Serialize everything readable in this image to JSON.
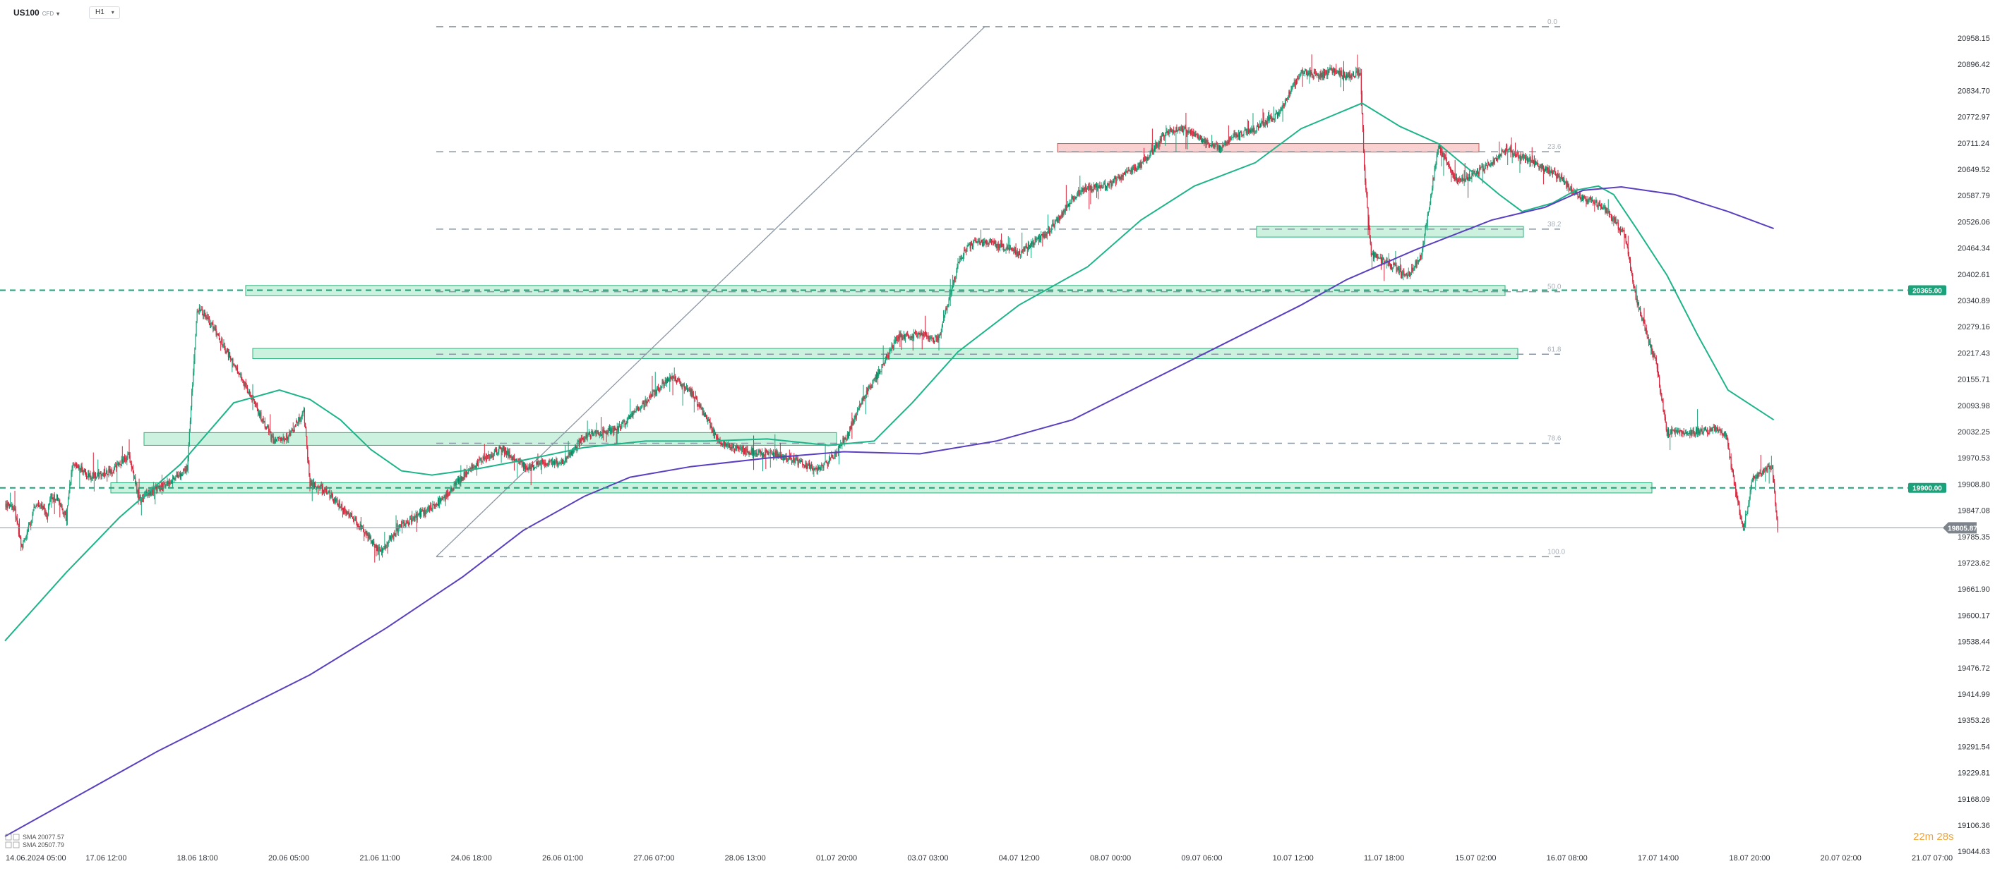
{
  "instrument": {
    "symbol": "US100",
    "type": "CFD",
    "timeframe": "H1"
  },
  "countdown": "22m 28s",
  "colors": {
    "bull": "#1aa37a",
    "bear": "#d7263d",
    "ema": "#1db48a",
    "sma": "#5a3fc0",
    "zone_green": "#8ee0b8",
    "zone_red": "#f29a9a",
    "fib": "#8a96a3"
  },
  "legend": [
    {
      "label": "SMA",
      "value": "20077.57",
      "color": "#1db48a"
    },
    {
      "label": "SMA",
      "value": "20507.79",
      "color": "#5a3fc0"
    }
  ],
  "chart_data": {
    "type": "candlestick",
    "timeframe": "H1",
    "ylim": [
      19044.63,
      21020
    ],
    "y_ticks": [
      "20958.15",
      "20896.42",
      "20834.70",
      "20772.97",
      "20711.24",
      "20649.52",
      "20587.79",
      "20526.06",
      "20464.34",
      "20402.61",
      "20340.89",
      "20279.16",
      "20217.43",
      "20155.71",
      "20093.98",
      "20032.25",
      "19970.53",
      "19908.80",
      "19847.08",
      "19785.35",
      "19723.62",
      "19661.90",
      "19600.17",
      "19538.44",
      "19476.72",
      "19414.99",
      "19353.26",
      "19291.54",
      "19229.81",
      "19168.09",
      "19106.36",
      "19044.63"
    ],
    "x_ticks": [
      "14.06.2024 05:00",
      "17.06 12:00",
      "18.06 18:00",
      "20.06 05:00",
      "21.06 11:00",
      "24.06 18:00",
      "26.06 01:00",
      "27.06 07:00",
      "28.06 13:00",
      "01.07 20:00",
      "03.07 03:00",
      "04.07 12:00",
      "08.07 00:00",
      "09.07 06:00",
      "10.07 12:00",
      "11.07 18:00",
      "15.07 02:00",
      "16.07 08:00",
      "17.07 14:00",
      "18.07 20:00",
      "20.07 02:00",
      "21.07 07:00"
    ],
    "current_price": "19805.87",
    "price_levels": [
      {
        "price": 20365,
        "label": "20365.00"
      },
      {
        "price": 19900,
        "label": "19900.00"
      }
    ],
    "fibonacci": {
      "high": 20985,
      "low": 19738,
      "levels": [
        {
          "ratio": 0.0,
          "label": "0.0"
        },
        {
          "ratio": 0.236,
          "label": "23.6"
        },
        {
          "ratio": 0.382,
          "label": "38.2"
        },
        {
          "ratio": 0.5,
          "label": "50.0"
        },
        {
          "ratio": 0.618,
          "label": "61.8"
        },
        {
          "ratio": 0.786,
          "label": "78.6"
        },
        {
          "ratio": 1.0,
          "label": "100.0"
        }
      ]
    },
    "path": [
      [
        0,
        19862
      ],
      [
        12,
        19855
      ],
      [
        22,
        19760
      ],
      [
        30,
        19800
      ],
      [
        40,
        19860
      ],
      [
        50,
        19855
      ],
      [
        55,
        19830
      ],
      [
        60,
        19880
      ],
      [
        68,
        19878
      ],
      [
        80,
        19830
      ],
      [
        88,
        19950
      ],
      [
        98,
        19950
      ],
      [
        108,
        19925
      ],
      [
        120,
        19932
      ],
      [
        140,
        19940
      ],
      [
        163,
        19975
      ],
      [
        176,
        19870
      ],
      [
        190,
        19890
      ],
      [
        209,
        19905
      ],
      [
        230,
        19930
      ],
      [
        239,
        19947
      ],
      [
        252,
        20320
      ],
      [
        262,
        20310
      ],
      [
        282,
        20250
      ],
      [
        300,
        20192
      ],
      [
        330,
        20090
      ],
      [
        352,
        20010
      ],
      [
        372,
        20020
      ],
      [
        392,
        20080
      ],
      [
        400,
        19910
      ],
      [
        420,
        19895
      ],
      [
        436,
        19865
      ],
      [
        448,
        19843
      ],
      [
        465,
        19812
      ],
      [
        492,
        19750
      ],
      [
        520,
        19810
      ],
      [
        556,
        19850
      ],
      [
        578,
        19880
      ],
      [
        612,
        19950
      ],
      [
        652,
        19992
      ],
      [
        686,
        19944
      ],
      [
        700,
        19959
      ],
      [
        730,
        19960
      ],
      [
        760,
        20020
      ],
      [
        805,
        20040
      ],
      [
        840,
        20100
      ],
      [
        860,
        20140
      ],
      [
        878,
        20160
      ],
      [
        900,
        20125
      ],
      [
        938,
        20005
      ],
      [
        975,
        19985
      ],
      [
        1010,
        19980
      ],
      [
        1038,
        19963
      ],
      [
        1064,
        19942
      ],
      [
        1080,
        19960
      ],
      [
        1105,
        20025
      ],
      [
        1125,
        20108
      ],
      [
        1140,
        20153
      ],
      [
        1172,
        20255
      ],
      [
        1188,
        20258
      ],
      [
        1205,
        20260
      ],
      [
        1219,
        20246
      ],
      [
        1226,
        20259
      ],
      [
        1252,
        20440
      ],
      [
        1268,
        20475
      ],
      [
        1288,
        20476
      ],
      [
        1305,
        20470
      ],
      [
        1330,
        20450
      ],
      [
        1350,
        20480
      ],
      [
        1368,
        20500
      ],
      [
        1400,
        20580
      ],
      [
        1415,
        20605
      ],
      [
        1445,
        20610
      ],
      [
        1490,
        20660
      ],
      [
        1525,
        20740
      ],
      [
        1545,
        20745
      ],
      [
        1568,
        20720
      ],
      [
        1592,
        20700
      ],
      [
        1615,
        20730
      ],
      [
        1640,
        20745
      ],
      [
        1670,
        20780
      ],
      [
        1700,
        20880
      ],
      [
        1722,
        20870
      ],
      [
        1742,
        20882
      ],
      [
        1762,
        20870
      ],
      [
        1778,
        20878
      ],
      [
        1783,
        20650
      ],
      [
        1792,
        20450
      ],
      [
        1812,
        20430
      ],
      [
        1840,
        20400
      ],
      [
        1858,
        20445
      ],
      [
        1880,
        20705
      ],
      [
        1905,
        20620
      ],
      [
        1925,
        20635
      ],
      [
        1950,
        20665
      ],
      [
        1970,
        20700
      ],
      [
        1985,
        20680
      ],
      [
        2000,
        20670
      ],
      [
        2020,
        20650
      ],
      [
        2040,
        20630
      ],
      [
        2060,
        20590
      ],
      [
        2075,
        20580
      ],
      [
        2095,
        20560
      ],
      [
        2110,
        20530
      ],
      [
        2125,
        20495
      ],
      [
        2138,
        20355
      ],
      [
        2155,
        20250
      ],
      [
        2165,
        20200
      ],
      [
        2180,
        20030
      ],
      [
        2200,
        20030
      ],
      [
        2228,
        20035
      ],
      [
        2248,
        20035
      ],
      [
        2258,
        20020
      ],
      [
        2270,
        19890
      ],
      [
        2280,
        19800
      ],
      [
        2292,
        19920
      ],
      [
        2308,
        19945
      ],
      [
        2318,
        19945
      ],
      [
        2325,
        19805
      ]
    ],
    "ema_path": [
      [
        0,
        19540
      ],
      [
        80,
        19700
      ],
      [
        150,
        19830
      ],
      [
        230,
        19955
      ],
      [
        300,
        20100
      ],
      [
        360,
        20130
      ],
      [
        400,
        20108
      ],
      [
        440,
        20060
      ],
      [
        480,
        19990
      ],
      [
        520,
        19940
      ],
      [
        560,
        19930
      ],
      [
        620,
        19945
      ],
      [
        680,
        19965
      ],
      [
        760,
        19995
      ],
      [
        840,
        20010
      ],
      [
        920,
        20010
      ],
      [
        1000,
        20015
      ],
      [
        1080,
        20000
      ],
      [
        1140,
        20010
      ],
      [
        1190,
        20100
      ],
      [
        1250,
        20220
      ],
      [
        1330,
        20330
      ],
      [
        1420,
        20420
      ],
      [
        1490,
        20530
      ],
      [
        1560,
        20610
      ],
      [
        1640,
        20665
      ],
      [
        1700,
        20745
      ],
      [
        1780,
        20805
      ],
      [
        1830,
        20750
      ],
      [
        1880,
        20710
      ],
      [
        1920,
        20650
      ],
      [
        1960,
        20590
      ],
      [
        1990,
        20550
      ],
      [
        2030,
        20570
      ],
      [
        2060,
        20600
      ],
      [
        2090,
        20610
      ],
      [
        2110,
        20590
      ],
      [
        2140,
        20510
      ],
      [
        2180,
        20400
      ],
      [
        2220,
        20260
      ],
      [
        2260,
        20130
      ],
      [
        2320,
        20060
      ]
    ],
    "sma_path": [
      [
        0,
        19080
      ],
      [
        100,
        19180
      ],
      [
        200,
        19280
      ],
      [
        300,
        19370
      ],
      [
        400,
        19460
      ],
      [
        500,
        19570
      ],
      [
        600,
        19690
      ],
      [
        680,
        19800
      ],
      [
        760,
        19880
      ],
      [
        820,
        19925
      ],
      [
        900,
        19950
      ],
      [
        1000,
        19970
      ],
      [
        1100,
        19985
      ],
      [
        1200,
        19980
      ],
      [
        1300,
        20010
      ],
      [
        1400,
        20060
      ],
      [
        1500,
        20150
      ],
      [
        1600,
        20240
      ],
      [
        1700,
        20330
      ],
      [
        1760,
        20390
      ],
      [
        1850,
        20460
      ],
      [
        1950,
        20530
      ],
      [
        2020,
        20560
      ],
      [
        2070,
        20600
      ],
      [
        2120,
        20608
      ],
      [
        2190,
        20590
      ],
      [
        2260,
        20550
      ],
      [
        2320,
        20510
      ]
    ]
  }
}
